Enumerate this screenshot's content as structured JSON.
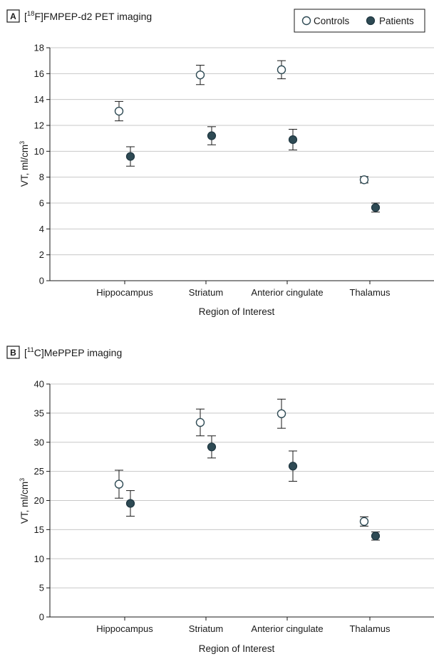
{
  "colors": {
    "controls_fill": "#ffffff",
    "controls_stroke": "#2e4a54",
    "patients_fill": "#2e4a54",
    "patients_stroke": "#1f3640",
    "grid": "#c8c8c8",
    "text": "#1a1a1a"
  },
  "legend": {
    "controls_label": "Controls",
    "patients_label": "Patients",
    "controls_icon": "open-circle-icon",
    "patients_icon": "filled-circle-icon"
  },
  "chart_data": [
    {
      "type": "scatter",
      "panel_letter": "A",
      "title_prefix": "[",
      "title_sup": "18",
      "title_rest": "F]FMPEP-d2 PET imaging",
      "ylabel_main": "VT, ml/cm",
      "ylabel_sup": "3",
      "xlabel": "Region of Interest",
      "categories": [
        "Hippocampus",
        "Striatum",
        "Anterior cingulate",
        "Thalamus"
      ],
      "ylim": [
        0,
        18
      ],
      "yticks": [
        0,
        2,
        4,
        6,
        8,
        10,
        12,
        14,
        16,
        18
      ],
      "grid": true,
      "legend_position": "top-right",
      "series": [
        {
          "name": "Controls",
          "values": [
            13.1,
            15.9,
            16.3,
            7.8
          ],
          "error": [
            0.75,
            0.75,
            0.7,
            0.25
          ]
        },
        {
          "name": "Patients",
          "values": [
            9.6,
            11.2,
            10.9,
            5.65
          ],
          "error": [
            0.75,
            0.7,
            0.8,
            0.35
          ]
        }
      ]
    },
    {
      "type": "scatter",
      "panel_letter": "B",
      "title_prefix": "[",
      "title_sup": "11",
      "title_rest": "C]MePPEP imaging",
      "ylabel_main": "VT, ml/cm",
      "ylabel_sup": "3",
      "xlabel": "Region of Interest",
      "categories": [
        "Hippocampus",
        "Striatum",
        "Anterior cingulate",
        "Thalamus"
      ],
      "ylim": [
        0,
        40
      ],
      "yticks": [
        0,
        5,
        10,
        15,
        20,
        25,
        30,
        35,
        40
      ],
      "grid": true,
      "series": [
        {
          "name": "Controls",
          "values": [
            22.8,
            33.4,
            34.9,
            16.4
          ],
          "error": [
            2.4,
            2.3,
            2.5,
            0.8
          ]
        },
        {
          "name": "Patients",
          "values": [
            19.5,
            29.2,
            25.9,
            13.9
          ],
          "error": [
            2.2,
            1.9,
            2.6,
            0.7
          ]
        }
      ]
    }
  ]
}
